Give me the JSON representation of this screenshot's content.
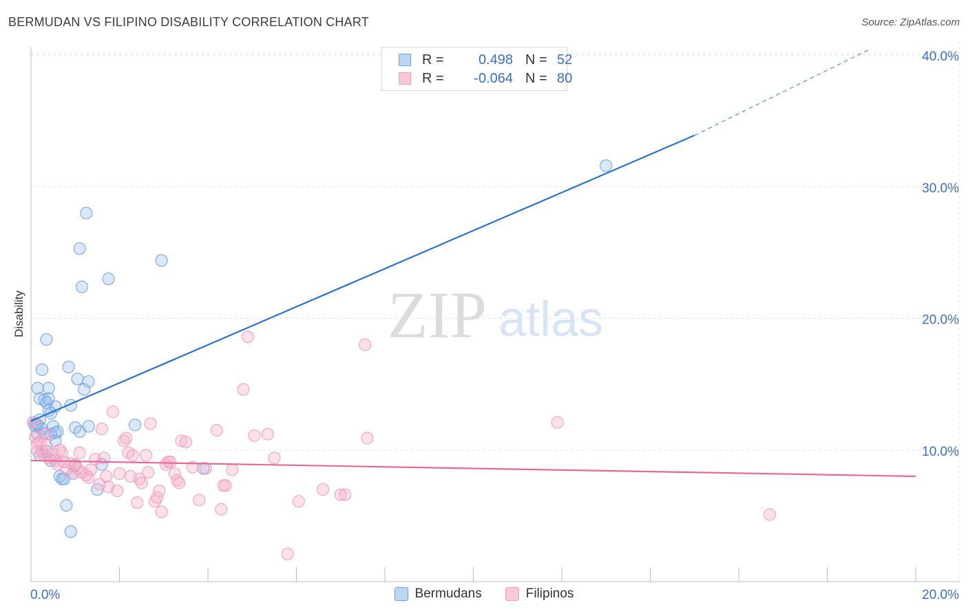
{
  "title": "BERMUDAN VS FILIPINO DISABILITY CORRELATION CHART",
  "source": "Source: ZipAtlas.com",
  "watermark": {
    "zip": "ZIP",
    "atlas": "atlas"
  },
  "legend": {
    "rows": [
      {
        "r_label": "R =",
        "r_value": "0.498",
        "n_label": "N =",
        "n_value": "52",
        "color": "#6fa0dc"
      },
      {
        "r_label": "R =",
        "r_value": "-0.064",
        "n_label": "N =",
        "n_value": "80",
        "color": "#f09cba"
      }
    ]
  },
  "chart_data": {
    "type": "scatter",
    "title": "BERMUDAN VS FILIPINO DISABILITY CORRELATION CHART",
    "xlabel": "",
    "ylabel": "Disability",
    "xlim": [
      0,
      20
    ],
    "ylim": [
      0,
      40
    ],
    "x_tick_labels": [
      "0.0%",
      "20.0%"
    ],
    "y_ticks": [
      10,
      20,
      30,
      40
    ],
    "y_tick_labels": [
      "10.0%",
      "20.0%",
      "30.0%",
      "40.0%"
    ],
    "grid": true,
    "legend_position": "bottom",
    "series": [
      {
        "name": "Bermudans",
        "color": "#6fa0dc",
        "line_color": "#2a72c8",
        "trend": {
          "x0": 0.0,
          "y0": 12.2,
          "x1": 15.0,
          "y1": 33.9,
          "x_dash_end": 19.0,
          "y_dash_end": 40.5
        },
        "points": [
          [
            0.05,
            12.1
          ],
          [
            0.1,
            11.8
          ],
          [
            0.15,
            11.2
          ],
          [
            0.2,
            9.6
          ],
          [
            0.1,
            12.0
          ],
          [
            0.15,
            14.7
          ],
          [
            0.2,
            13.9
          ],
          [
            0.25,
            16.1
          ],
          [
            0.3,
            13.8
          ],
          [
            0.35,
            13.6
          ],
          [
            0.4,
            14.7
          ],
          [
            0.35,
            18.4
          ],
          [
            0.4,
            13.0
          ],
          [
            0.45,
            12.8
          ],
          [
            0.45,
            11.2
          ],
          [
            0.5,
            11.8
          ],
          [
            0.55,
            13.3
          ],
          [
            0.55,
            11.3
          ],
          [
            0.6,
            11.4
          ],
          [
            0.65,
            8.0
          ],
          [
            0.7,
            7.8
          ],
          [
            0.75,
            7.8
          ],
          [
            0.8,
            5.8
          ],
          [
            0.85,
            16.3
          ],
          [
            0.95,
            8.2
          ],
          [
            0.9,
            13.4
          ],
          [
            0.9,
            3.8
          ],
          [
            1.0,
            8.8
          ],
          [
            1.0,
            11.7
          ],
          [
            1.05,
            15.4
          ],
          [
            1.1,
            25.3
          ],
          [
            1.15,
            22.4
          ],
          [
            1.1,
            11.4
          ],
          [
            1.2,
            14.6
          ],
          [
            1.25,
            28.0
          ],
          [
            1.3,
            15.2
          ],
          [
            1.3,
            11.8
          ],
          [
            1.5,
            7.0
          ],
          [
            1.6,
            8.9
          ],
          [
            1.75,
            23.0
          ],
          [
            2.35,
            11.9
          ],
          [
            2.95,
            24.4
          ],
          [
            3.9,
            8.6
          ],
          [
            13.0,
            31.6
          ],
          [
            0.3,
            11.3
          ],
          [
            0.2,
            12.3
          ],
          [
            0.35,
            9.9
          ],
          [
            0.45,
            9.2
          ],
          [
            0.55,
            10.7
          ],
          [
            0.25,
            11.6
          ],
          [
            0.4,
            13.9
          ],
          [
            0.15,
            11.9
          ]
        ]
      },
      {
        "name": "Filipinos",
        "color": "#f09cba",
        "line_color": "#e8679a",
        "trend": {
          "x0": 0.0,
          "y0": 9.2,
          "x1": 20.0,
          "y1": 8.0
        },
        "points": [
          [
            0.05,
            12.1
          ],
          [
            0.1,
            11.0
          ],
          [
            0.15,
            10.5
          ],
          [
            0.2,
            10.6
          ],
          [
            0.25,
            9.9
          ],
          [
            0.3,
            9.6
          ],
          [
            0.35,
            11.2
          ],
          [
            0.4,
            9.4
          ],
          [
            0.5,
            9.7
          ],
          [
            0.55,
            9.2
          ],
          [
            0.6,
            8.9
          ],
          [
            0.7,
            9.8
          ],
          [
            0.75,
            9.1
          ],
          [
            0.8,
            8.5
          ],
          [
            0.9,
            9.0
          ],
          [
            0.95,
            8.2
          ],
          [
            1.0,
            8.9
          ],
          [
            1.1,
            9.8
          ],
          [
            1.15,
            8.3
          ],
          [
            1.25,
            8.1
          ],
          [
            1.3,
            7.9
          ],
          [
            1.35,
            8.5
          ],
          [
            1.45,
            9.3
          ],
          [
            1.55,
            7.4
          ],
          [
            1.6,
            11.6
          ],
          [
            1.65,
            9.4
          ],
          [
            1.7,
            8.0
          ],
          [
            1.75,
            7.2
          ],
          [
            1.85,
            12.9
          ],
          [
            1.95,
            6.9
          ],
          [
            2.0,
            8.2
          ],
          [
            2.1,
            10.7
          ],
          [
            2.15,
            10.9
          ],
          [
            2.2,
            9.8
          ],
          [
            2.3,
            9.6
          ],
          [
            2.4,
            6.0
          ],
          [
            2.45,
            7.8
          ],
          [
            2.5,
            7.5
          ],
          [
            2.6,
            9.6
          ],
          [
            2.65,
            8.3
          ],
          [
            2.7,
            12.0
          ],
          [
            2.8,
            6.1
          ],
          [
            2.85,
            6.4
          ],
          [
            2.9,
            6.9
          ],
          [
            2.95,
            5.3
          ],
          [
            3.05,
            8.9
          ],
          [
            3.1,
            9.1
          ],
          [
            3.15,
            9.1
          ],
          [
            3.25,
            8.2
          ],
          [
            3.3,
            7.7
          ],
          [
            3.35,
            7.5
          ],
          [
            3.4,
            10.7
          ],
          [
            3.5,
            10.6
          ],
          [
            3.65,
            8.7
          ],
          [
            3.8,
            6.2
          ],
          [
            3.95,
            8.6
          ],
          [
            4.2,
            11.5
          ],
          [
            4.3,
            5.5
          ],
          [
            4.35,
            7.3
          ],
          [
            4.4,
            7.3
          ],
          [
            4.55,
            8.5
          ],
          [
            4.8,
            14.6
          ],
          [
            4.9,
            18.6
          ],
          [
            5.05,
            11.1
          ],
          [
            5.35,
            11.2
          ],
          [
            5.5,
            9.4
          ],
          [
            5.8,
            2.1
          ],
          [
            6.05,
            6.1
          ],
          [
            6.6,
            7.0
          ],
          [
            7.0,
            6.6
          ],
          [
            7.1,
            6.6
          ],
          [
            7.55,
            18.0
          ],
          [
            7.6,
            10.9
          ],
          [
            11.9,
            12.1
          ],
          [
            16.7,
            5.1
          ],
          [
            0.35,
            10.4
          ],
          [
            0.65,
            10.0
          ],
          [
            1.05,
            8.6
          ],
          [
            2.25,
            8.0
          ],
          [
            0.15,
            9.9
          ]
        ]
      }
    ]
  }
}
